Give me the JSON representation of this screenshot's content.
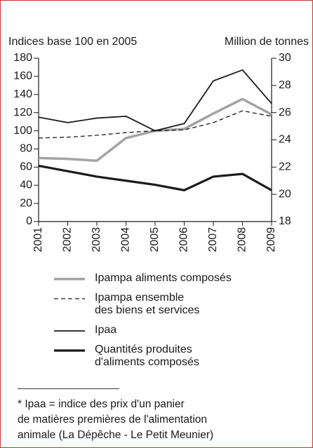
{
  "chart_data": {
    "type": "line",
    "y_label": "Indices base 100 en 2005",
    "y2_label": "Million de tonnes",
    "categories": [
      "2001",
      "2002",
      "2003",
      "2004",
      "2005",
      "2006",
      "2007",
      "2008",
      "2009"
    ],
    "series": [
      {
        "name": "Ipampa aliments composés",
        "color": "#a3a3a3",
        "values": [
          70,
          69,
          67,
          92,
          100,
          102,
          119,
          135,
          118
        ]
      },
      {
        "name": "Ipampa ensemble\ndes biens et services",
        "color": "#1a1a1a",
        "values": [
          92,
          93,
          95,
          98,
          100,
          101,
          109,
          122,
          116
        ]
      },
      {
        "name": "Ipaa",
        "color": "#1a1a1a",
        "values": [
          115,
          109,
          114,
          116,
          100,
          108,
          155,
          167,
          130
        ]
      },
      {
        "name": "Quantités produites\nd'aliments composés",
        "color": "#1a1a1a",
        "axis": "y2",
        "values": [
          22.1,
          21.7,
          21.3,
          21.0,
          20.7,
          20.3,
          21.3,
          21.5,
          20.3
        ]
      }
    ],
    "ylim": [
      0,
      180
    ],
    "yticks": [
      0,
      20,
      40,
      60,
      80,
      100,
      120,
      140,
      160,
      180
    ],
    "y2lim": [
      18,
      30
    ],
    "y2ticks": [
      18,
      20,
      22,
      24,
      26,
      28,
      30
    ],
    "footnote": "* Ipaa = indice des prix d'un panier\nde matières premières de l'alimentation\nanimale (La Dépêche - Le Petit Meunier)"
  }
}
